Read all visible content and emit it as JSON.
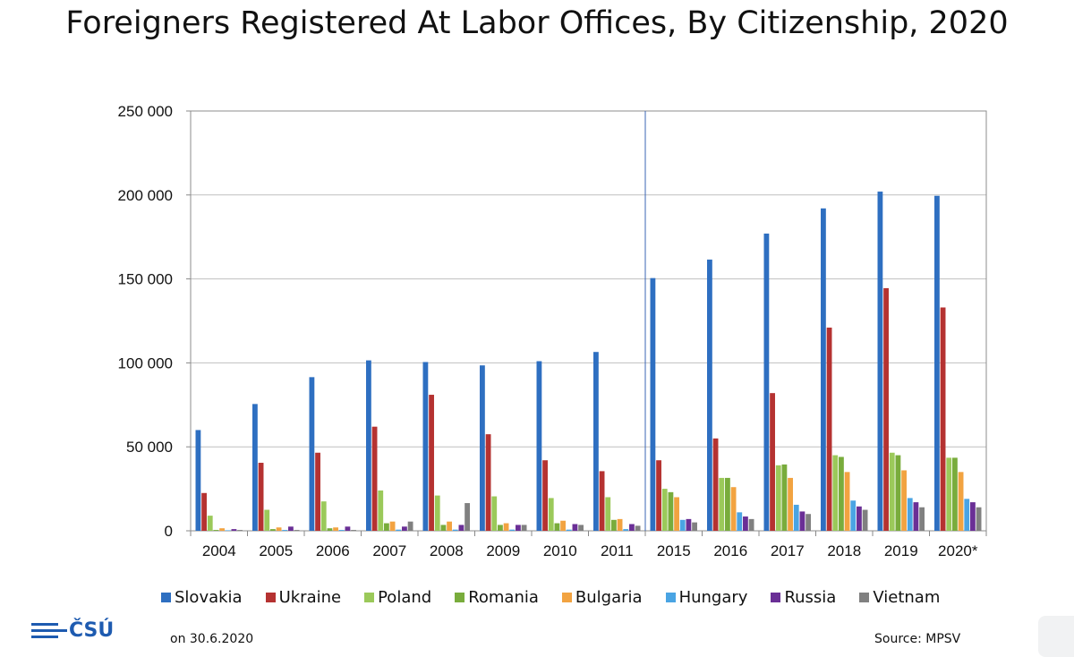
{
  "page": {
    "title": "Foreigners Registered At Labor Offices, By Citizenship, 2020",
    "date_note": "on 30.6.2020",
    "source": "Source: MPSV",
    "logo_text": "ČSÚ",
    "logo_color": "#1e5bb0"
  },
  "chart_data": {
    "type": "bar",
    "title": "Foreigners Registered At Labor Offices, By Citizenship, 2020",
    "xlabel": "",
    "ylabel": "",
    "ylim": [
      0,
      250000
    ],
    "yticks": [
      0,
      50000,
      100000,
      150000,
      200000,
      250000
    ],
    "ytick_labels": [
      "0",
      "50 000",
      "100 000",
      "150 000",
      "200 000",
      "250 000"
    ],
    "grid": true,
    "legend_position": "bottom",
    "categories": [
      "2004",
      "2005",
      "2006",
      "2007",
      "2008",
      "2009",
      "2010",
      "2011",
      "2015",
      "2016",
      "2017",
      "2018",
      "2019",
      "2020*"
    ],
    "series": [
      {
        "name": "Slovakia",
        "color": "#2e6fc1",
        "values": [
          60000,
          75500,
          91500,
          101500,
          100500,
          98500,
          101000,
          106500,
          150500,
          161500,
          177000,
          192000,
          202000,
          199500
        ]
      },
      {
        "name": "Ukraine",
        "color": "#b53231",
        "values": [
          22500,
          40500,
          46500,
          62000,
          81000,
          57500,
          42000,
          35500,
          42000,
          55000,
          82000,
          121000,
          144500,
          133000
        ]
      },
      {
        "name": "Poland",
        "color": "#9bc95a",
        "values": [
          9000,
          12500,
          17500,
          24000,
          21000,
          20500,
          19500,
          20000,
          25000,
          31500,
          39000,
          45000,
          46500,
          43500
        ]
      },
      {
        "name": "Romania",
        "color": "#79ac3c",
        "values": [
          500,
          1000,
          1500,
          4500,
          3500,
          3500,
          4500,
          6500,
          23000,
          31500,
          39500,
          44000,
          45000,
          43500
        ]
      },
      {
        "name": "Bulgaria",
        "color": "#f2a341",
        "values": [
          1500,
          2000,
          2000,
          5500,
          5500,
          4500,
          6000,
          7000,
          20000,
          26000,
          31500,
          35000,
          36000,
          35000
        ]
      },
      {
        "name": "Hungary",
        "color": "#4aa4e3",
        "values": [
          300,
          500,
          500,
          700,
          700,
          700,
          700,
          1000,
          6500,
          11000,
          15500,
          18000,
          19500,
          19000
        ]
      },
      {
        "name": "Russia",
        "color": "#6a2f96",
        "values": [
          1000,
          2500,
          2500,
          2500,
          3500,
          3500,
          4000,
          4000,
          7000,
          8500,
          11500,
          14500,
          17000,
          17000
        ]
      },
      {
        "name": "Vietnam",
        "color": "#808080",
        "values": [
          500,
          500,
          500,
          5500,
          16500,
          3500,
          3500,
          3000,
          5000,
          7000,
          10000,
          12500,
          14000,
          14000
        ]
      }
    ]
  }
}
